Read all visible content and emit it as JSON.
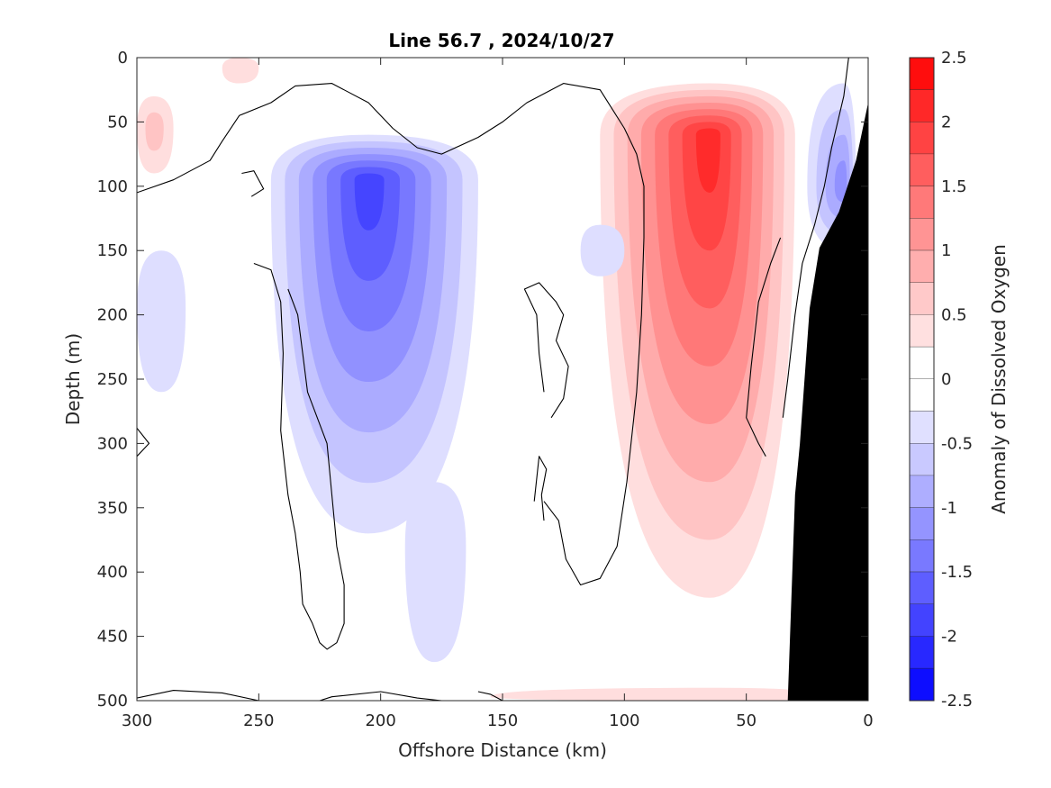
{
  "chart_data": {
    "type": "heatmap",
    "title": "Line 56.7 , 2024/10/27",
    "xlabel": "Offshore Distance (km)",
    "ylabel": "Depth (m)",
    "colorbar_label": "Anomaly of Dissolved Oxygen",
    "xlim": [
      300,
      0
    ],
    "ylim": [
      0,
      500
    ],
    "x_reversed": true,
    "y_reversed": true,
    "x_ticks": [
      "300",
      "250",
      "200",
      "150",
      "100",
      "50",
      "0"
    ],
    "x_tick_values": [
      300,
      250,
      200,
      150,
      100,
      50,
      0
    ],
    "y_ticks": [
      "0",
      "50",
      "100",
      "150",
      "200",
      "250",
      "300",
      "350",
      "400",
      "450",
      "500"
    ],
    "y_tick_values": [
      0,
      50,
      100,
      150,
      200,
      250,
      300,
      350,
      400,
      450,
      500
    ],
    "colorbar_range": [
      -2.5,
      2.5
    ],
    "colorbar_step": 0.25,
    "colorbar_ticks": [
      "2.5",
      "2",
      "1.5",
      "1",
      "0.5",
      "0",
      "-0.5",
      "-1",
      "-1.5",
      "-2",
      "-2.5"
    ],
    "colorbar_tick_values": [
      2.5,
      2,
      1.5,
      1,
      0.5,
      0,
      -0.5,
      -1,
      -1.5,
      -2,
      -2.5
    ],
    "colormap": {
      "negative": "#0000ff",
      "zero": "#ffffff",
      "positive": "#ff0000"
    },
    "bathymetry_color": "#000000",
    "bathymetry": [
      [
        0,
        35
      ],
      [
        5,
        80
      ],
      [
        12,
        120
      ],
      [
        20,
        148
      ],
      [
        24,
        195
      ],
      [
        28,
        300
      ],
      [
        30,
        340
      ],
      [
        33,
        500
      ],
      [
        0,
        500
      ]
    ],
    "anomaly_features": [
      {
        "name": "negative-core-offshore",
        "x": [
          160,
          245
        ],
        "depth": [
          60,
          370
        ],
        "peak_x": 205,
        "peak_depth": 95,
        "peak_value": -1.8
      },
      {
        "name": "negative-tail-deep",
        "x": [
          165,
          190
        ],
        "depth": [
          330,
          470
        ],
        "peak_x": 178,
        "peak_depth": 380,
        "peak_value": -0.4
      },
      {
        "name": "positive-core-nearshore",
        "x": [
          30,
          110
        ],
        "depth": [
          20,
          420
        ],
        "peak_x": 65,
        "peak_depth": 60,
        "peak_value": 2.0
      },
      {
        "name": "positive-patch-west",
        "x": [
          285,
          300
        ],
        "depth": [
          30,
          90
        ],
        "peak_x": 293,
        "peak_depth": 55,
        "peak_value": 0.6
      },
      {
        "name": "negative-slope",
        "x": [
          5,
          25
        ],
        "depth": [
          20,
          150
        ],
        "peak_x": 10,
        "peak_depth": 100,
        "peak_value": -1.2
      },
      {
        "name": "negative-small-west",
        "x": [
          280,
          300
        ],
        "depth": [
          150,
          260
        ],
        "peak_x": 290,
        "peak_depth": 195,
        "peak_value": -0.3
      },
      {
        "name": "negative-small-mid",
        "x": [
          100,
          118
        ],
        "depth": [
          130,
          170
        ],
        "peak_x": 110,
        "peak_depth": 150,
        "peak_value": -0.3
      },
      {
        "name": "positive-small-top",
        "x": [
          250,
          265
        ],
        "depth": [
          0,
          20
        ],
        "peak_x": 258,
        "peak_depth": 8,
        "peak_value": 0.3
      },
      {
        "name": "positive-bottom-band",
        "x": [
          20,
          155
        ],
        "depth": [
          490,
          500
        ],
        "peak_x": 60,
        "peak_depth": 497,
        "peak_value": 0.3
      }
    ],
    "zero_contour": [
      [
        [
          300,
          105
        ],
        [
          285,
          95
        ],
        [
          270,
          80
        ],
        [
          265,
          65
        ],
        [
          258,
          45
        ],
        [
          245,
          35
        ],
        [
          235,
          22
        ],
        [
          220,
          20
        ],
        [
          205,
          35
        ],
        [
          195,
          55
        ],
        [
          185,
          70
        ],
        [
          175,
          75
        ],
        [
          160,
          62
        ],
        [
          150,
          50
        ],
        [
          140,
          35
        ],
        [
          125,
          20
        ],
        [
          110,
          25
        ],
        [
          105,
          40
        ],
        [
          100,
          55
        ],
        [
          95,
          75
        ],
        [
          92,
          100
        ],
        [
          92,
          140
        ],
        [
          93,
          200
        ],
        [
          95,
          260
        ],
        [
          99,
          330
        ],
        [
          103,
          380
        ],
        [
          110,
          405
        ],
        [
          118,
          410
        ],
        [
          124,
          390
        ],
        [
          127,
          360
        ],
        [
          133,
          345
        ]
      ],
      [
        [
          300,
          310
        ],
        [
          295,
          300
        ],
        [
          300,
          288
        ]
      ],
      [
        [
          257,
          90
        ],
        [
          252,
          88
        ],
        [
          248,
          102
        ],
        [
          253,
          108
        ]
      ],
      [
        [
          252,
          160
        ],
        [
          245,
          165
        ],
        [
          241,
          190
        ],
        [
          240,
          230
        ],
        [
          241,
          290
        ],
        [
          238,
          340
        ],
        [
          235,
          370
        ],
        [
          233,
          400
        ],
        [
          232,
          425
        ],
        [
          228,
          440
        ],
        [
          225,
          455
        ],
        [
          222,
          460
        ],
        [
          218,
          455
        ],
        [
          215,
          440
        ],
        [
          215,
          410
        ],
        [
          218,
          380
        ],
        [
          220,
          340
        ],
        [
          222,
          300
        ],
        [
          230,
          260
        ],
        [
          232,
          230
        ],
        [
          234,
          200
        ],
        [
          238,
          180
        ]
      ],
      [
        [
          130,
          280
        ],
        [
          125,
          265
        ],
        [
          123,
          240
        ],
        [
          128,
          220
        ],
        [
          125,
          200
        ],
        [
          128,
          190
        ],
        [
          135,
          175
        ],
        [
          141,
          180
        ],
        [
          136,
          200
        ],
        [
          135,
          230
        ],
        [
          133,
          260
        ]
      ],
      [
        [
          133,
          360
        ],
        [
          134,
          340
        ],
        [
          132,
          320
        ],
        [
          135,
          310
        ],
        [
          137,
          345
        ]
      ],
      [
        [
          300,
          498
        ],
        [
          285,
          492
        ],
        [
          265,
          494
        ],
        [
          250,
          500
        ]
      ],
      [
        [
          225,
          500
        ],
        [
          220,
          497
        ],
        [
          200,
          493
        ],
        [
          185,
          498
        ],
        [
          175,
          500
        ]
      ],
      [
        [
          150,
          500
        ],
        [
          155,
          495
        ],
        [
          160,
          493
        ]
      ],
      [
        [
          36,
          140
        ],
        [
          40,
          160
        ],
        [
          45,
          190
        ],
        [
          48,
          240
        ],
        [
          50,
          280
        ],
        [
          45,
          300
        ],
        [
          42,
          310
        ]
      ],
      [
        [
          35,
          280
        ],
        [
          33,
          250
        ],
        [
          30,
          200
        ],
        [
          27,
          160
        ],
        [
          22,
          130
        ],
        [
          18,
          100
        ],
        [
          15,
          70
        ],
        [
          10,
          30
        ],
        [
          8,
          0
        ]
      ]
    ]
  }
}
